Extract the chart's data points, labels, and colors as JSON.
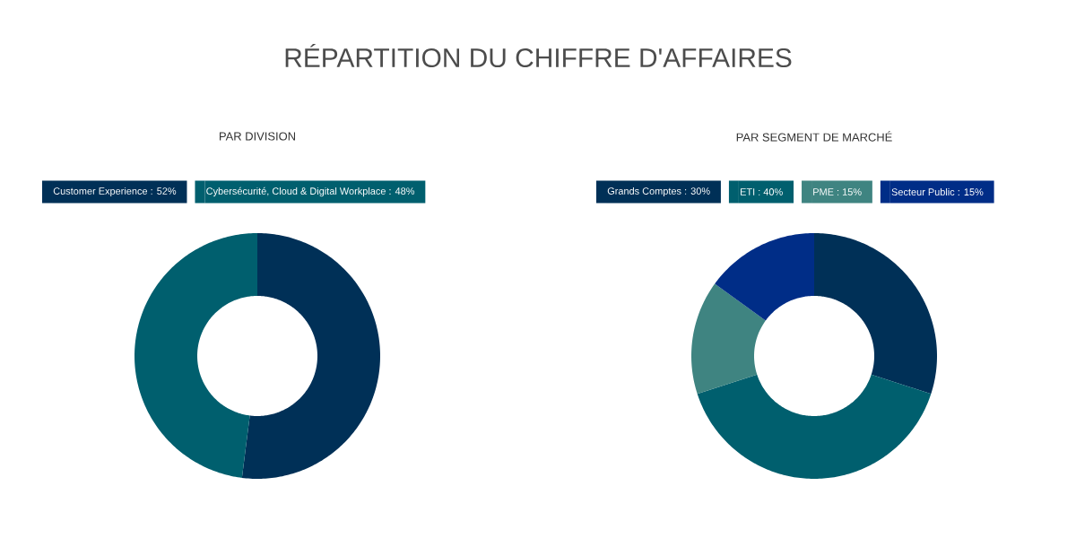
{
  "chart_data": [
    {
      "type": "donut",
      "title": "RÉPARTITION DU CHIFFRE D'AFFAIRES",
      "subtitle": "PAR DIVISION",
      "legend": "top",
      "categories": [
        "Customer Experience : 52%",
        "Cybersécurité, Cloud & Digital Workplace : 48%"
      ],
      "values": [
        52,
        48
      ],
      "colors": [
        "#003057",
        "#005f6e"
      ]
    },
    {
      "type": "donut",
      "subtitle": "PAR SEGMENT DE MARCHÉ",
      "legend": "top",
      "categories": [
        "Grands Comptes : 30%",
        "ETI : 40%",
        "PME : 15%",
        "Secteur Public : 15%"
      ],
      "values": [
        30,
        40,
        15,
        15
      ],
      "colors": [
        "#003057",
        "#005f6e",
        "#3f8481",
        "#002d87"
      ]
    }
  ]
}
